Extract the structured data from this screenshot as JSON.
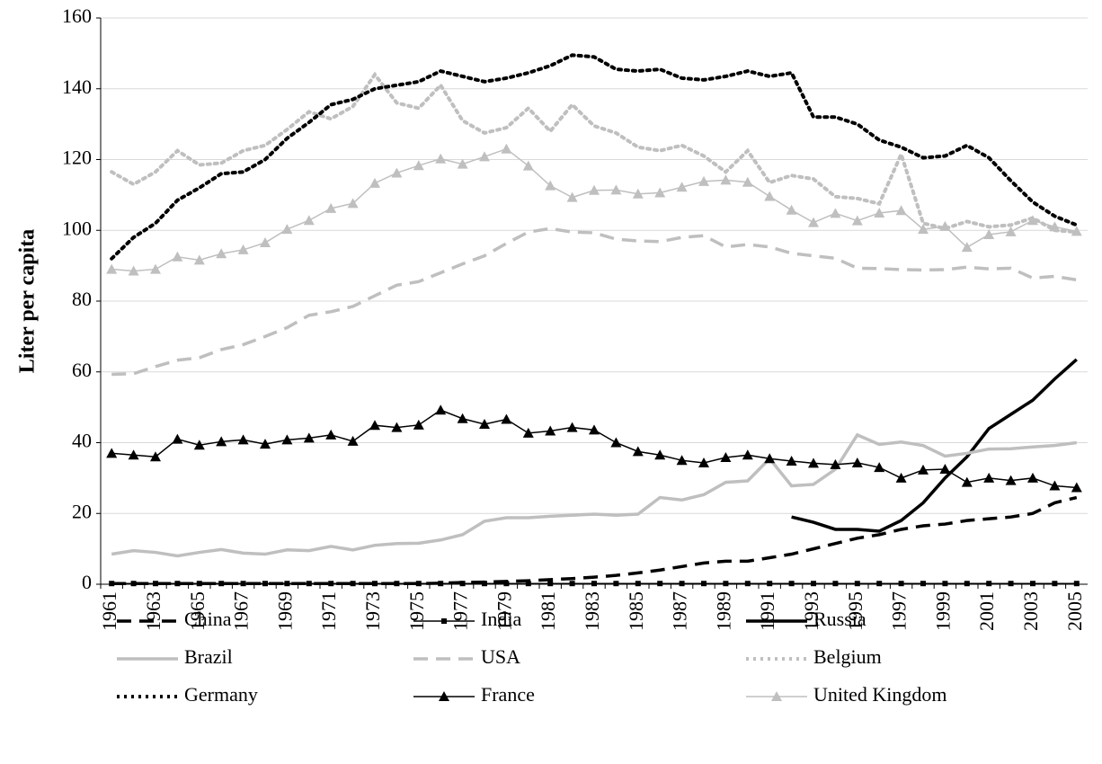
{
  "chart_data": {
    "type": "line",
    "y_label": "Liter per capita",
    "categories": [
      "1961",
      null,
      "1963",
      null,
      "1965",
      null,
      "1967",
      null,
      "1969",
      null,
      "1971",
      null,
      "1973",
      null,
      "1975",
      null,
      "1977",
      null,
      "1979",
      null,
      "1981",
      null,
      "1983",
      null,
      "1985",
      null,
      "1987",
      null,
      "1989",
      null,
      "1991",
      null,
      "1993",
      null,
      "1995",
      null,
      "1997",
      null,
      "1999",
      null,
      "2001",
      null,
      "2003",
      null,
      "2005"
    ],
    "ylim": [
      0,
      160
    ],
    "yticks": [
      0,
      20,
      40,
      60,
      80,
      100,
      120,
      140,
      160
    ],
    "grid": true,
    "series": [
      {
        "name": "China",
        "color": "#000000",
        "dash": "dashed",
        "width": 3.5,
        "marker": "none",
        "values": [
          0.2,
          0.2,
          0.2,
          0.2,
          0.2,
          0.2,
          0.2,
          0.2,
          0.2,
          0.2,
          0.2,
          0.2,
          0.2,
          0.2,
          0.2,
          0.3,
          0.5,
          0.6,
          0.8,
          1.0,
          1.3,
          1.6,
          2.0,
          2.5,
          3.2,
          4.0,
          5.0,
          6.0,
          6.5,
          6.5,
          7.5,
          8.5,
          10,
          11.5,
          13,
          14,
          15.5,
          16.5,
          17,
          18,
          18.5,
          19,
          20,
          23,
          24.5
        ]
      },
      {
        "name": "India",
        "color": "#000000",
        "dash": "solid",
        "width": 1.5,
        "marker": "square",
        "values": [
          0.2,
          0.2,
          0.2,
          0.2,
          0.2,
          0.2,
          0.2,
          0.2,
          0.2,
          0.2,
          0.2,
          0.2,
          0.2,
          0.2,
          0.2,
          0.2,
          0.2,
          0.2,
          0.2,
          0.2,
          0.2,
          0.2,
          0.2,
          0.2,
          0.2,
          0.2,
          0.2,
          0.2,
          0.2,
          0.2,
          0.2,
          0.2,
          0.2,
          0.2,
          0.2,
          0.2,
          0.2,
          0.2,
          0.2,
          0.2,
          0.2,
          0.2,
          0.2,
          0.2,
          0.2
        ]
      },
      {
        "name": "Russia",
        "color": "#000000",
        "dash": "solid",
        "width": 3.5,
        "marker": "none",
        "values": [
          null,
          null,
          null,
          null,
          null,
          null,
          null,
          null,
          null,
          null,
          null,
          null,
          null,
          null,
          null,
          null,
          null,
          null,
          null,
          null,
          null,
          null,
          null,
          null,
          null,
          null,
          null,
          null,
          null,
          null,
          null,
          19,
          17.5,
          15.5,
          15.5,
          15,
          18,
          23,
          30,
          36,
          44,
          48,
          52,
          58,
          63.5
        ]
      },
      {
        "name": "Brazil",
        "color": "#bfbfbf",
        "dash": "solid",
        "width": 3.5,
        "marker": "none",
        "values": [
          8.5,
          9.5,
          9,
          8,
          9,
          9.8,
          8.8,
          8.5,
          9.7,
          9.5,
          10.7,
          9.7,
          11,
          11.5,
          11.6,
          12.5,
          14,
          17.8,
          18.8,
          18.8,
          19.2,
          19.5,
          19.8,
          19.5,
          19.8,
          24.5,
          23.8,
          25.3,
          28.8,
          29.2,
          35.5,
          27.8,
          28.2,
          32.5,
          42.2,
          39.5,
          40.2,
          39.2,
          36.2,
          37,
          38.2,
          38.3,
          38.8,
          39.2,
          40
        ]
      },
      {
        "name": "USA",
        "color": "#bfbfbf",
        "dash": "dashed",
        "width": 3.5,
        "marker": "none",
        "values": [
          59.3,
          59.5,
          61.5,
          63.3,
          64,
          66.3,
          67.7,
          70,
          72.5,
          76,
          77,
          78.5,
          81.5,
          84.5,
          85.5,
          88,
          90.5,
          92.8,
          96.3,
          99.5,
          100.5,
          99.5,
          99.3,
          97.5,
          97,
          96.8,
          98,
          98.5,
          95.3,
          96,
          95.3,
          93.5,
          92.8,
          92.1,
          89.3,
          89.2,
          88.9,
          88.8,
          88.9,
          89.6,
          89.1,
          89.3,
          86.5,
          87,
          86
        ]
      },
      {
        "name": "Belgium",
        "color": "#bfbfbf",
        "dash": "dotted",
        "width": 4,
        "marker": "none",
        "values": [
          116.5,
          113,
          116.5,
          122.5,
          118.5,
          119,
          122.5,
          124,
          128.5,
          133.5,
          131.5,
          135,
          144,
          136,
          134.5,
          141,
          131,
          127.5,
          129,
          134.5,
          128,
          135.5,
          129.5,
          127.5,
          123.5,
          122.5,
          124,
          121,
          116.5,
          122.5,
          113.5,
          115.5,
          114.5,
          109.5,
          109,
          107.5,
          121.5,
          102,
          100.5,
          102.5,
          101,
          101.5,
          103.5,
          100,
          99.5
        ]
      },
      {
        "name": "Germany",
        "color": "#000000",
        "dash": "dotted",
        "width": 4,
        "marker": "none",
        "values": [
          92,
          98,
          102,
          108.5,
          112,
          116,
          116.5,
          120,
          126,
          130.5,
          135.5,
          137,
          140,
          141,
          142,
          145,
          143.5,
          142,
          143,
          144.5,
          146.5,
          149.5,
          149,
          145.5,
          145,
          145.5,
          143,
          142.5,
          143.5,
          145,
          143.5,
          144.5,
          132,
          132,
          130,
          125.5,
          123.5,
          120.5,
          121,
          124,
          120.5,
          114,
          108,
          104,
          101.5
        ]
      },
      {
        "name": "France",
        "color": "#000000",
        "dash": "solid",
        "width": 1.5,
        "marker": "triangle",
        "values": [
          37,
          36.5,
          36,
          41,
          39.3,
          40.3,
          40.8,
          39.6,
          40.8,
          41.3,
          42.2,
          40.4,
          44.9,
          44.3,
          45,
          49.2,
          46.8,
          45.2,
          46.6,
          42.7,
          43.3,
          44.3,
          43.6,
          40,
          37.5,
          36.5,
          35,
          34.3,
          35.8,
          36.5,
          35.5,
          34.8,
          34.2,
          33.8,
          34.3,
          33,
          30,
          32.3,
          32.5,
          28.8,
          30,
          29.3,
          30,
          27.8,
          27.3
        ]
      },
      {
        "name": "United Kingdom",
        "color": "#bfbfbf",
        "dash": "solid",
        "width": 1.5,
        "marker": "triangle",
        "values": [
          89,
          88.5,
          89,
          92.5,
          91.6,
          93.4,
          94.5,
          96.5,
          100.3,
          102.8,
          106.2,
          107.6,
          113.3,
          116.2,
          118.3,
          120.2,
          118.7,
          120.8,
          123,
          118.2,
          112.6,
          109.3,
          111.3,
          111.4,
          110.3,
          110.6,
          112.2,
          113.8,
          114.2,
          113.6,
          109.6,
          105.7,
          102.2,
          104.8,
          102.7,
          104.9,
          105.6,
          100.3,
          101.1,
          95.2,
          98.8,
          99.6,
          102.8,
          101,
          99.7
        ]
      }
    ]
  }
}
